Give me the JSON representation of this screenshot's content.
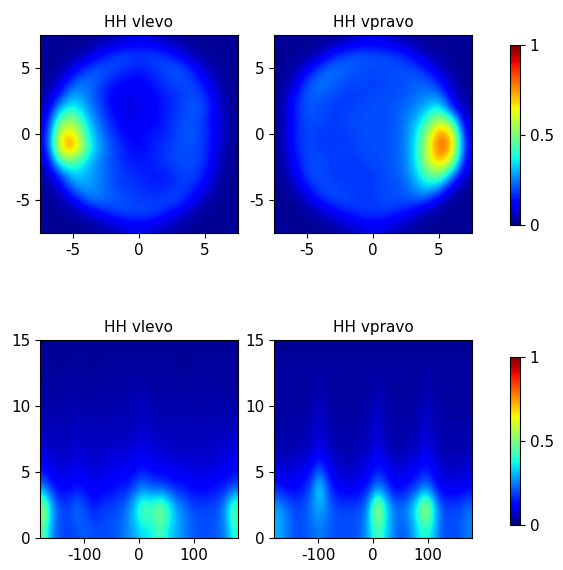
{
  "chart_data": [
    {
      "type": "heatmap",
      "title": "HH vlevo",
      "xlim": [
        -7.5,
        7.5
      ],
      "ylim": [
        -7.5,
        7.5
      ],
      "xticks": [
        -5,
        0,
        5
      ],
      "yticks": [
        -5,
        0,
        5
      ],
      "colorbar_index": 0,
      "cells": [
        [
          0.02,
          0.02,
          0.02,
          0.02,
          0.03,
          0.05,
          0.08,
          0.1,
          0.08,
          0.05,
          0.03,
          0.02,
          0.02,
          0.02,
          0.02
        ],
        [
          0.02,
          0.02,
          0.03,
          0.05,
          0.12,
          0.18,
          0.2,
          0.18,
          0.2,
          0.17,
          0.12,
          0.05,
          0.03,
          0.02,
          0.02
        ],
        [
          0.02,
          0.03,
          0.08,
          0.18,
          0.22,
          0.2,
          0.18,
          0.15,
          0.17,
          0.2,
          0.22,
          0.15,
          0.06,
          0.03,
          0.02
        ],
        [
          0.02,
          0.06,
          0.2,
          0.25,
          0.2,
          0.15,
          0.12,
          0.12,
          0.15,
          0.18,
          0.2,
          0.2,
          0.12,
          0.04,
          0.02
        ],
        [
          0.03,
          0.15,
          0.3,
          0.25,
          0.18,
          0.12,
          0.1,
          0.1,
          0.12,
          0.15,
          0.18,
          0.2,
          0.18,
          0.06,
          0.02
        ],
        [
          0.05,
          0.3,
          0.4,
          0.28,
          0.2,
          0.12,
          0.08,
          0.1,
          0.12,
          0.15,
          0.18,
          0.22,
          0.2,
          0.08,
          0.02
        ],
        [
          0.08,
          0.5,
          0.55,
          0.35,
          0.22,
          0.15,
          0.1,
          0.1,
          0.12,
          0.15,
          0.2,
          0.2,
          0.18,
          0.08,
          0.02
        ],
        [
          0.1,
          0.65,
          0.7,
          0.4,
          0.25,
          0.18,
          0.12,
          0.12,
          0.15,
          0.15,
          0.2,
          0.22,
          0.18,
          0.1,
          0.02
        ],
        [
          0.1,
          0.7,
          0.8,
          0.45,
          0.28,
          0.2,
          0.15,
          0.12,
          0.15,
          0.18,
          0.2,
          0.2,
          0.18,
          0.08,
          0.02
        ],
        [
          0.06,
          0.45,
          0.5,
          0.35,
          0.25,
          0.2,
          0.15,
          0.15,
          0.15,
          0.18,
          0.2,
          0.2,
          0.18,
          0.06,
          0.02
        ],
        [
          0.03,
          0.2,
          0.35,
          0.3,
          0.25,
          0.2,
          0.18,
          0.15,
          0.15,
          0.15,
          0.18,
          0.2,
          0.15,
          0.04,
          0.02
        ],
        [
          0.02,
          0.08,
          0.25,
          0.3,
          0.25,
          0.2,
          0.18,
          0.18,
          0.15,
          0.15,
          0.18,
          0.18,
          0.1,
          0.03,
          0.02
        ],
        [
          0.02,
          0.03,
          0.1,
          0.22,
          0.25,
          0.22,
          0.2,
          0.18,
          0.18,
          0.2,
          0.2,
          0.12,
          0.05,
          0.02,
          0.02
        ],
        [
          0.02,
          0.02,
          0.03,
          0.06,
          0.12,
          0.18,
          0.2,
          0.2,
          0.2,
          0.15,
          0.1,
          0.04,
          0.02,
          0.02,
          0.02
        ],
        [
          0.02,
          0.02,
          0.02,
          0.02,
          0.03,
          0.05,
          0.08,
          0.1,
          0.08,
          0.05,
          0.03,
          0.02,
          0.02,
          0.02,
          0.02
        ]
      ]
    },
    {
      "type": "heatmap",
      "title": "HH vpravo",
      "xlim": [
        -7.5,
        7.5
      ],
      "ylim": [
        -7.5,
        7.5
      ],
      "xticks": [
        -5,
        0,
        5
      ],
      "yticks": [
        -5,
        0,
        5
      ],
      "colorbar_index": 0,
      "cells": [
        [
          0.02,
          0.02,
          0.02,
          0.02,
          0.03,
          0.05,
          0.08,
          0.1,
          0.08,
          0.05,
          0.03,
          0.02,
          0.02,
          0.02,
          0.02
        ],
        [
          0.02,
          0.02,
          0.03,
          0.05,
          0.15,
          0.2,
          0.22,
          0.2,
          0.2,
          0.18,
          0.12,
          0.05,
          0.03,
          0.02,
          0.02
        ],
        [
          0.02,
          0.03,
          0.08,
          0.2,
          0.25,
          0.22,
          0.2,
          0.2,
          0.2,
          0.2,
          0.2,
          0.15,
          0.06,
          0.03,
          0.02
        ],
        [
          0.02,
          0.06,
          0.2,
          0.25,
          0.22,
          0.2,
          0.2,
          0.18,
          0.2,
          0.2,
          0.22,
          0.22,
          0.15,
          0.04,
          0.02
        ],
        [
          0.02,
          0.12,
          0.22,
          0.22,
          0.2,
          0.18,
          0.18,
          0.2,
          0.2,
          0.2,
          0.22,
          0.25,
          0.25,
          0.08,
          0.02
        ],
        [
          0.02,
          0.15,
          0.22,
          0.2,
          0.18,
          0.18,
          0.2,
          0.2,
          0.2,
          0.22,
          0.25,
          0.3,
          0.4,
          0.15,
          0.03
        ],
        [
          0.02,
          0.15,
          0.2,
          0.2,
          0.18,
          0.2,
          0.2,
          0.2,
          0.2,
          0.22,
          0.28,
          0.4,
          0.6,
          0.45,
          0.05
        ],
        [
          0.02,
          0.15,
          0.2,
          0.18,
          0.18,
          0.18,
          0.2,
          0.2,
          0.2,
          0.22,
          0.3,
          0.5,
          0.8,
          0.7,
          0.08
        ],
        [
          0.02,
          0.15,
          0.2,
          0.18,
          0.18,
          0.18,
          0.2,
          0.2,
          0.2,
          0.22,
          0.3,
          0.55,
          0.85,
          0.75,
          0.1
        ],
        [
          0.02,
          0.12,
          0.2,
          0.2,
          0.18,
          0.18,
          0.18,
          0.2,
          0.2,
          0.22,
          0.3,
          0.55,
          0.75,
          0.6,
          0.08
        ],
        [
          0.02,
          0.08,
          0.2,
          0.2,
          0.18,
          0.18,
          0.18,
          0.18,
          0.2,
          0.22,
          0.28,
          0.45,
          0.55,
          0.3,
          0.05
        ],
        [
          0.02,
          0.04,
          0.15,
          0.2,
          0.2,
          0.18,
          0.18,
          0.18,
          0.2,
          0.2,
          0.25,
          0.35,
          0.3,
          0.08,
          0.02
        ],
        [
          0.02,
          0.02,
          0.06,
          0.15,
          0.2,
          0.2,
          0.18,
          0.18,
          0.2,
          0.2,
          0.22,
          0.2,
          0.08,
          0.02,
          0.02
        ],
        [
          0.02,
          0.02,
          0.02,
          0.05,
          0.1,
          0.15,
          0.18,
          0.18,
          0.18,
          0.15,
          0.1,
          0.04,
          0.02,
          0.02,
          0.02
        ],
        [
          0.02,
          0.02,
          0.02,
          0.02,
          0.03,
          0.05,
          0.08,
          0.1,
          0.08,
          0.05,
          0.03,
          0.02,
          0.02,
          0.02,
          0.02
        ]
      ]
    },
    {
      "type": "heatmap",
      "title": "HH vlevo",
      "xlim": [
        -180,
        180
      ],
      "ylim": [
        0,
        15
      ],
      "xticks": [
        -100,
        0,
        100
      ],
      "yticks": [
        0,
        5,
        10,
        15
      ],
      "colorbar_index": 1,
      "cells": [
        [
          0.02,
          0.02,
          0.02,
          0.02,
          0.02,
          0.02,
          0.02,
          0.02,
          0.02,
          0.02,
          0.02,
          0.02,
          0.02,
          0.02,
          0.02,
          0.02,
          0.02,
          0.02,
          0.02,
          0.02,
          0.02,
          0.02,
          0.02,
          0.02
        ],
        [
          0.03,
          0.03,
          0.02,
          0.03,
          0.03,
          0.03,
          0.02,
          0.03,
          0.03,
          0.03,
          0.03,
          0.03,
          0.03,
          0.03,
          0.03,
          0.03,
          0.03,
          0.02,
          0.03,
          0.03,
          0.03,
          0.03,
          0.03,
          0.03
        ],
        [
          0.03,
          0.03,
          0.03,
          0.04,
          0.03,
          0.03,
          0.03,
          0.03,
          0.04,
          0.03,
          0.03,
          0.05,
          0.04,
          0.03,
          0.03,
          0.04,
          0.03,
          0.03,
          0.03,
          0.04,
          0.03,
          0.03,
          0.03,
          0.03
        ],
        [
          0.04,
          0.04,
          0.04,
          0.04,
          0.05,
          0.04,
          0.04,
          0.04,
          0.04,
          0.05,
          0.04,
          0.05,
          0.06,
          0.05,
          0.04,
          0.04,
          0.05,
          0.04,
          0.04,
          0.04,
          0.04,
          0.05,
          0.04,
          0.04
        ],
        [
          0.05,
          0.05,
          0.05,
          0.05,
          0.06,
          0.05,
          0.05,
          0.05,
          0.05,
          0.05,
          0.05,
          0.06,
          0.07,
          0.06,
          0.05,
          0.05,
          0.05,
          0.05,
          0.05,
          0.05,
          0.05,
          0.05,
          0.05,
          0.06
        ],
        [
          0.08,
          0.06,
          0.06,
          0.06,
          0.07,
          0.06,
          0.06,
          0.06,
          0.07,
          0.07,
          0.07,
          0.08,
          0.09,
          0.08,
          0.07,
          0.07,
          0.06,
          0.06,
          0.06,
          0.06,
          0.06,
          0.07,
          0.07,
          0.08
        ],
        [
          0.12,
          0.08,
          0.08,
          0.08,
          0.1,
          0.09,
          0.08,
          0.08,
          0.09,
          0.1,
          0.1,
          0.12,
          0.14,
          0.12,
          0.1,
          0.1,
          0.09,
          0.09,
          0.08,
          0.08,
          0.08,
          0.09,
          0.1,
          0.12
        ],
        [
          0.25,
          0.15,
          0.12,
          0.12,
          0.15,
          0.12,
          0.1,
          0.12,
          0.12,
          0.15,
          0.15,
          0.2,
          0.25,
          0.2,
          0.2,
          0.18,
          0.15,
          0.15,
          0.12,
          0.12,
          0.12,
          0.15,
          0.15,
          0.2
        ],
        [
          0.6,
          0.3,
          0.2,
          0.2,
          0.25,
          0.2,
          0.15,
          0.18,
          0.2,
          0.2,
          0.25,
          0.35,
          0.5,
          0.45,
          0.55,
          0.45,
          0.3,
          0.25,
          0.2,
          0.2,
          0.2,
          0.2,
          0.3,
          0.5
        ],
        [
          0.45,
          0.25,
          0.2,
          0.18,
          0.2,
          0.22,
          0.2,
          0.2,
          0.2,
          0.22,
          0.25,
          0.3,
          0.35,
          0.35,
          0.45,
          0.35,
          0.3,
          0.25,
          0.22,
          0.2,
          0.2,
          0.22,
          0.25,
          0.4
        ]
      ]
    },
    {
      "type": "heatmap",
      "title": "HH vpravo",
      "xlim": [
        -180,
        180
      ],
      "ylim": [
        0,
        15
      ],
      "xticks": [
        -100,
        0,
        100
      ],
      "yticks": [
        0,
        5,
        10,
        15
      ],
      "colorbar_index": 1,
      "cells": [
        [
          0.02,
          0.02,
          0.02,
          0.02,
          0.02,
          0.02,
          0.02,
          0.02,
          0.02,
          0.02,
          0.02,
          0.02,
          0.02,
          0.02,
          0.02,
          0.02,
          0.02,
          0.02,
          0.02,
          0.02,
          0.02,
          0.02,
          0.02,
          0.02
        ],
        [
          0.03,
          0.03,
          0.03,
          0.03,
          0.03,
          0.04,
          0.03,
          0.03,
          0.03,
          0.03,
          0.03,
          0.03,
          0.04,
          0.03,
          0.03,
          0.03,
          0.03,
          0.03,
          0.04,
          0.03,
          0.03,
          0.03,
          0.03,
          0.03
        ],
        [
          0.03,
          0.03,
          0.03,
          0.03,
          0.03,
          0.05,
          0.03,
          0.03,
          0.03,
          0.03,
          0.03,
          0.03,
          0.05,
          0.03,
          0.03,
          0.03,
          0.03,
          0.03,
          0.05,
          0.03,
          0.03,
          0.03,
          0.03,
          0.03
        ],
        [
          0.03,
          0.03,
          0.03,
          0.03,
          0.04,
          0.06,
          0.04,
          0.03,
          0.03,
          0.03,
          0.03,
          0.04,
          0.07,
          0.04,
          0.03,
          0.03,
          0.03,
          0.04,
          0.07,
          0.04,
          0.03,
          0.03,
          0.03,
          0.03
        ],
        [
          0.04,
          0.04,
          0.04,
          0.04,
          0.05,
          0.08,
          0.05,
          0.04,
          0.04,
          0.04,
          0.04,
          0.05,
          0.08,
          0.05,
          0.04,
          0.04,
          0.04,
          0.05,
          0.08,
          0.05,
          0.04,
          0.04,
          0.04,
          0.04
        ],
        [
          0.04,
          0.04,
          0.04,
          0.05,
          0.06,
          0.1,
          0.06,
          0.04,
          0.04,
          0.04,
          0.05,
          0.06,
          0.1,
          0.06,
          0.04,
          0.04,
          0.05,
          0.06,
          0.1,
          0.06,
          0.04,
          0.04,
          0.04,
          0.04
        ],
        [
          0.08,
          0.08,
          0.08,
          0.1,
          0.12,
          0.2,
          0.12,
          0.08,
          0.06,
          0.06,
          0.08,
          0.1,
          0.15,
          0.12,
          0.08,
          0.08,
          0.1,
          0.12,
          0.15,
          0.1,
          0.06,
          0.06,
          0.06,
          0.08
        ],
        [
          0.15,
          0.12,
          0.12,
          0.15,
          0.2,
          0.4,
          0.2,
          0.12,
          0.1,
          0.1,
          0.12,
          0.15,
          0.25,
          0.2,
          0.12,
          0.12,
          0.15,
          0.2,
          0.25,
          0.15,
          0.1,
          0.1,
          0.1,
          0.12
        ],
        [
          0.3,
          0.25,
          0.2,
          0.2,
          0.25,
          0.3,
          0.25,
          0.2,
          0.2,
          0.2,
          0.2,
          0.3,
          0.65,
          0.4,
          0.25,
          0.25,
          0.3,
          0.45,
          0.65,
          0.35,
          0.2,
          0.2,
          0.2,
          0.25
        ],
        [
          0.3,
          0.25,
          0.2,
          0.2,
          0.22,
          0.25,
          0.22,
          0.2,
          0.2,
          0.2,
          0.22,
          0.3,
          0.45,
          0.35,
          0.25,
          0.2,
          0.25,
          0.35,
          0.4,
          0.3,
          0.2,
          0.2,
          0.2,
          0.25
        ]
      ]
    }
  ],
  "colorbars": [
    {
      "range": [
        0,
        1
      ],
      "ticks": [
        0,
        0.5,
        1
      ]
    },
    {
      "range": [
        0,
        1
      ],
      "ticks": [
        0,
        0.5,
        1
      ]
    }
  ]
}
